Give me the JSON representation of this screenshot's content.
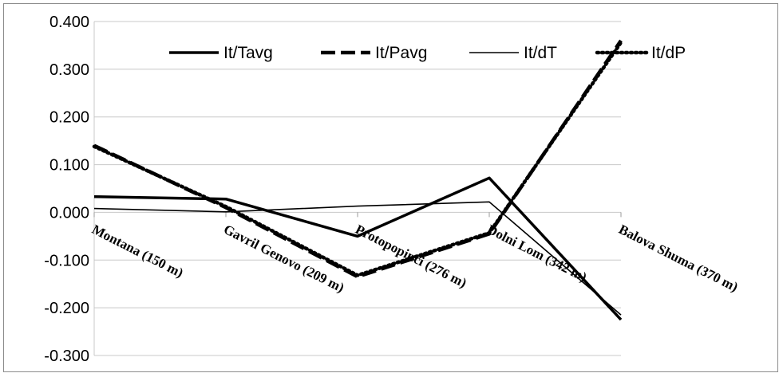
{
  "chart_data": {
    "type": "line",
    "title": "",
    "xlabel": "",
    "ylabel": "",
    "categories": [
      "Montana (150 m)",
      "Gavril Genovo (209 m)",
      "Protopopinci (276 m)",
      "Dolni Lom (342 m)",
      "Balova Shuma (370 m)"
    ],
    "y_ticks": [
      "0.400",
      "0.300",
      "0.200",
      "0.100",
      "0.000",
      "-0.100",
      "-0.200",
      "-0.300"
    ],
    "ylim": [
      -0.3,
      0.4
    ],
    "grid": "horizontal",
    "legend_position": "top",
    "series": [
      {
        "name": "It/Tavg",
        "style": "thick-solid",
        "values": [
          0.033,
          0.028,
          -0.05,
          0.072,
          -0.225
        ]
      },
      {
        "name": "It/Pavg",
        "style": "thick-dashed",
        "values": [
          0.14,
          0.01,
          -0.135,
          -0.045,
          0.36
        ]
      },
      {
        "name": "It/dT",
        "style": "thin-solid",
        "values": [
          0.008,
          0.001,
          0.013,
          0.022,
          -0.215
        ]
      },
      {
        "name": "It/dP",
        "style": "dotted",
        "values": [
          0.138,
          0.012,
          -0.132,
          -0.043,
          0.356
        ]
      }
    ]
  }
}
